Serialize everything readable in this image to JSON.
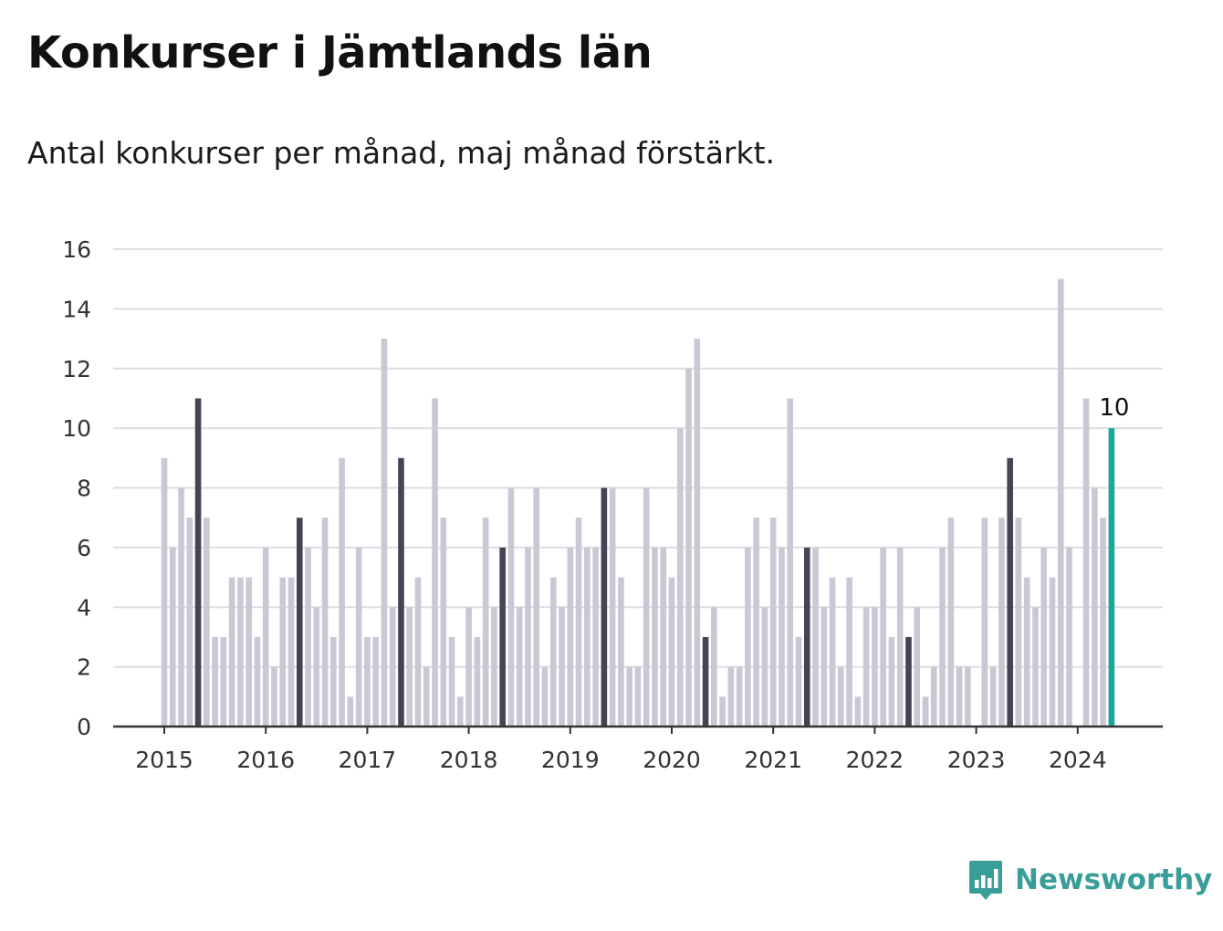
{
  "header": {
    "title": "Konkurser i Jämtlands län",
    "subtitle": "Antal konkurser per månad, maj månad förstärkt."
  },
  "brand": {
    "name": "Newsworthy",
    "icon": "bar-chart-icon"
  },
  "colors": {
    "bar": "#c9c8d4",
    "highlight": "#464454",
    "latest": "#1aa899",
    "grid": "#dedee2",
    "axis": "#333333"
  },
  "chart_data": {
    "type": "bar",
    "title": "Konkurser i Jämtlands län",
    "subtitle": "Antal konkurser per månad, maj månad förstärkt.",
    "xlabel": "",
    "ylabel": "",
    "ylim": [
      0,
      16
    ],
    "yticks": [
      "0",
      "2",
      "4",
      "6",
      "8",
      "10",
      "12",
      "14",
      "16"
    ],
    "xticks": [
      "2015",
      "2016",
      "2017",
      "2018",
      "2019",
      "2020",
      "2021",
      "2022",
      "2023",
      "2024"
    ],
    "start": "2015-01",
    "highlight_month": 5,
    "grid": true,
    "values": [
      9,
      6,
      8,
      7,
      11,
      7,
      3,
      3,
      5,
      5,
      5,
      3,
      6,
      2,
      5,
      5,
      7,
      6,
      4,
      7,
      3,
      9,
      1,
      6,
      3,
      3,
      13,
      4,
      9,
      4,
      5,
      2,
      11,
      7,
      3,
      1,
      4,
      3,
      7,
      4,
      6,
      8,
      4,
      6,
      8,
      2,
      5,
      4,
      6,
      7,
      6,
      6,
      8,
      8,
      5,
      2,
      2,
      8,
      6,
      6,
      5,
      10,
      12,
      13,
      3,
      4,
      1,
      2,
      2,
      6,
      7,
      4,
      7,
      6,
      11,
      3,
      6,
      6,
      4,
      5,
      2,
      5,
      1,
      4,
      4,
      6,
      3,
      6,
      3,
      4,
      1,
      2,
      6,
      7,
      2,
      2,
      0,
      7,
      2,
      7,
      9,
      7,
      5,
      4,
      6,
      5,
      15,
      6,
      0,
      11,
      8,
      7,
      10
    ],
    "annotation": {
      "label": "10"
    }
  }
}
